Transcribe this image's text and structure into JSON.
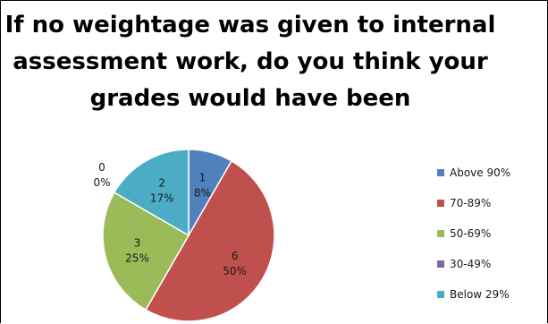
{
  "chart_data": {
    "type": "pie",
    "title_lines": [
      "If no weightage was given to internal",
      "assessment work, do you think your",
      "grades would have been"
    ],
    "categories": [
      "Above 90%",
      "70-89%",
      "50-69%",
      "30-49%",
      "Below 29%"
    ],
    "values": [
      1,
      6,
      3,
      0,
      2
    ],
    "percent_labels": [
      "8%",
      "50%",
      "25%",
      "0%",
      "17%"
    ],
    "colors": [
      "#4f81bd",
      "#c0504d",
      "#9bbb59",
      "#8064a2",
      "#4bacc6"
    ],
    "legend_position": "right"
  }
}
